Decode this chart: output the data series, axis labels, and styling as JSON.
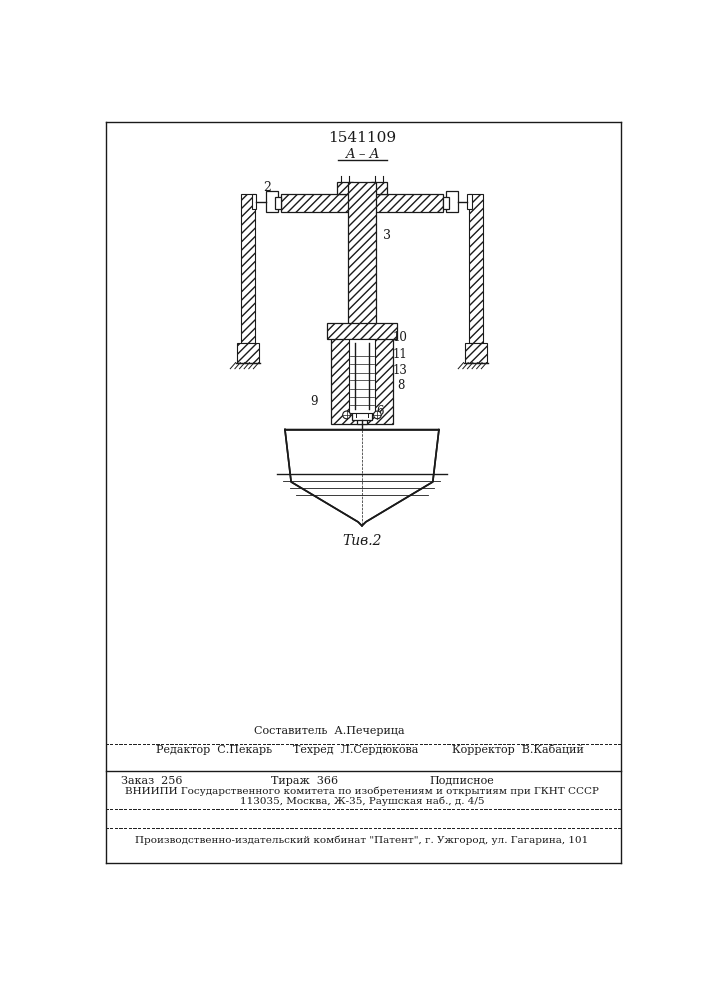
{
  "title": "1541109",
  "fig_label": "Τив.2",
  "section_label": "A – A",
  "bg_color": "#ffffff",
  "line_color": "#1a1a1a",
  "footer_editor": "Редактор  С.Пекарь",
  "footer_comp": "Составитель  А.Печерица",
  "footer_tech": "Техред  Л.Сердюкова",
  "footer_corr": "Корректор  В.Кабаций",
  "footer_order": "Заказ  256",
  "footer_print": "Тираж  366",
  "footer_sub": "Подписное",
  "footer_vnipi": "ВНИИПИ Государственного комитета по изобретениям и открытиям при ГКНТ СССР",
  "footer_addr": "113035, Москва, Ж-35, Раушская наб., д. 4/5",
  "footer_patent": "Производственно-издательский комбинат \"Патент\", г. Ужгород, ул. Гагарина, 101"
}
